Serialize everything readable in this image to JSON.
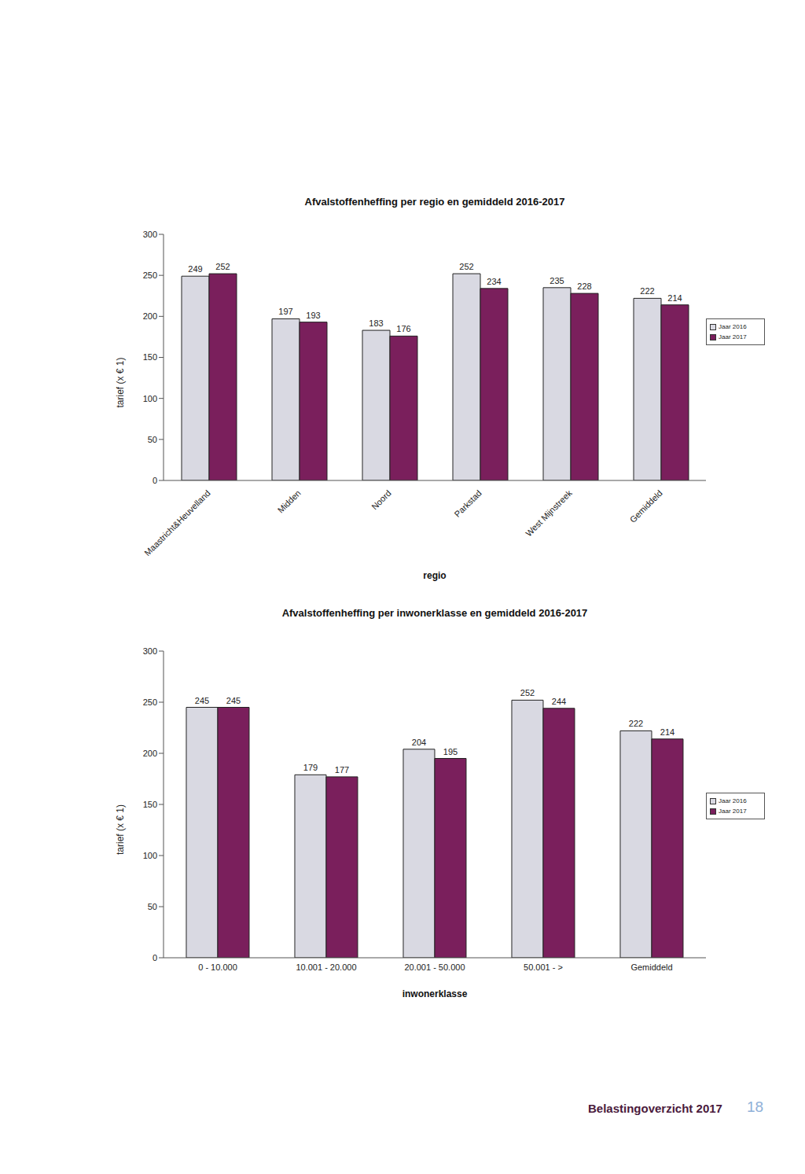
{
  "chart_data": [
    {
      "type": "bar",
      "title": "Afvalstoffenheffing per regio en gemiddeld 2016-2017",
      "xlabel": "regio",
      "ylabel": "tarief (x € 1)",
      "categories": [
        "Maastricht&Heuvelland",
        "Midden",
        "Noord",
        "Parkstad",
        "West Mijnstreek",
        "Gemiddeld"
      ],
      "series": [
        {
          "name": "Jaar 2016",
          "color": "#d9d9e2",
          "values": [
            249,
            197,
            183,
            252,
            235,
            222
          ]
        },
        {
          "name": "Jaar 2017",
          "color": "#7a1f5c",
          "values": [
            252,
            193,
            176,
            234,
            228,
            214
          ]
        }
      ],
      "ylim": [
        0,
        300
      ],
      "yticks": [
        0,
        50,
        100,
        150,
        200,
        250,
        300
      ],
      "grid": false,
      "legend": "right",
      "data_labels": true
    },
    {
      "type": "bar",
      "title": "Afvalstoffenheffing per inwonerklasse en gemiddeld 2016-2017",
      "xlabel": "inwonerklasse",
      "ylabel": "tarief (x € 1)",
      "categories": [
        "0 - 10.000",
        "10.001 - 20.000",
        "20.001 - 50.000",
        "50.001 - >",
        "Gemiddeld"
      ],
      "series": [
        {
          "name": "Jaar 2016",
          "color": "#d9d9e2",
          "values": [
            245,
            179,
            204,
            252,
            222
          ]
        },
        {
          "name": "Jaar 2017",
          "color": "#7a1f5c",
          "values": [
            245,
            177,
            195,
            244,
            214
          ]
        }
      ],
      "ylim": [
        0,
        300
      ],
      "yticks": [
        0,
        50,
        100,
        150,
        200,
        250,
        300
      ],
      "grid": false,
      "legend": "right",
      "data_labels": true
    }
  ],
  "footer": {
    "text": "Belastingoverzicht 2017",
    "page": 18
  }
}
